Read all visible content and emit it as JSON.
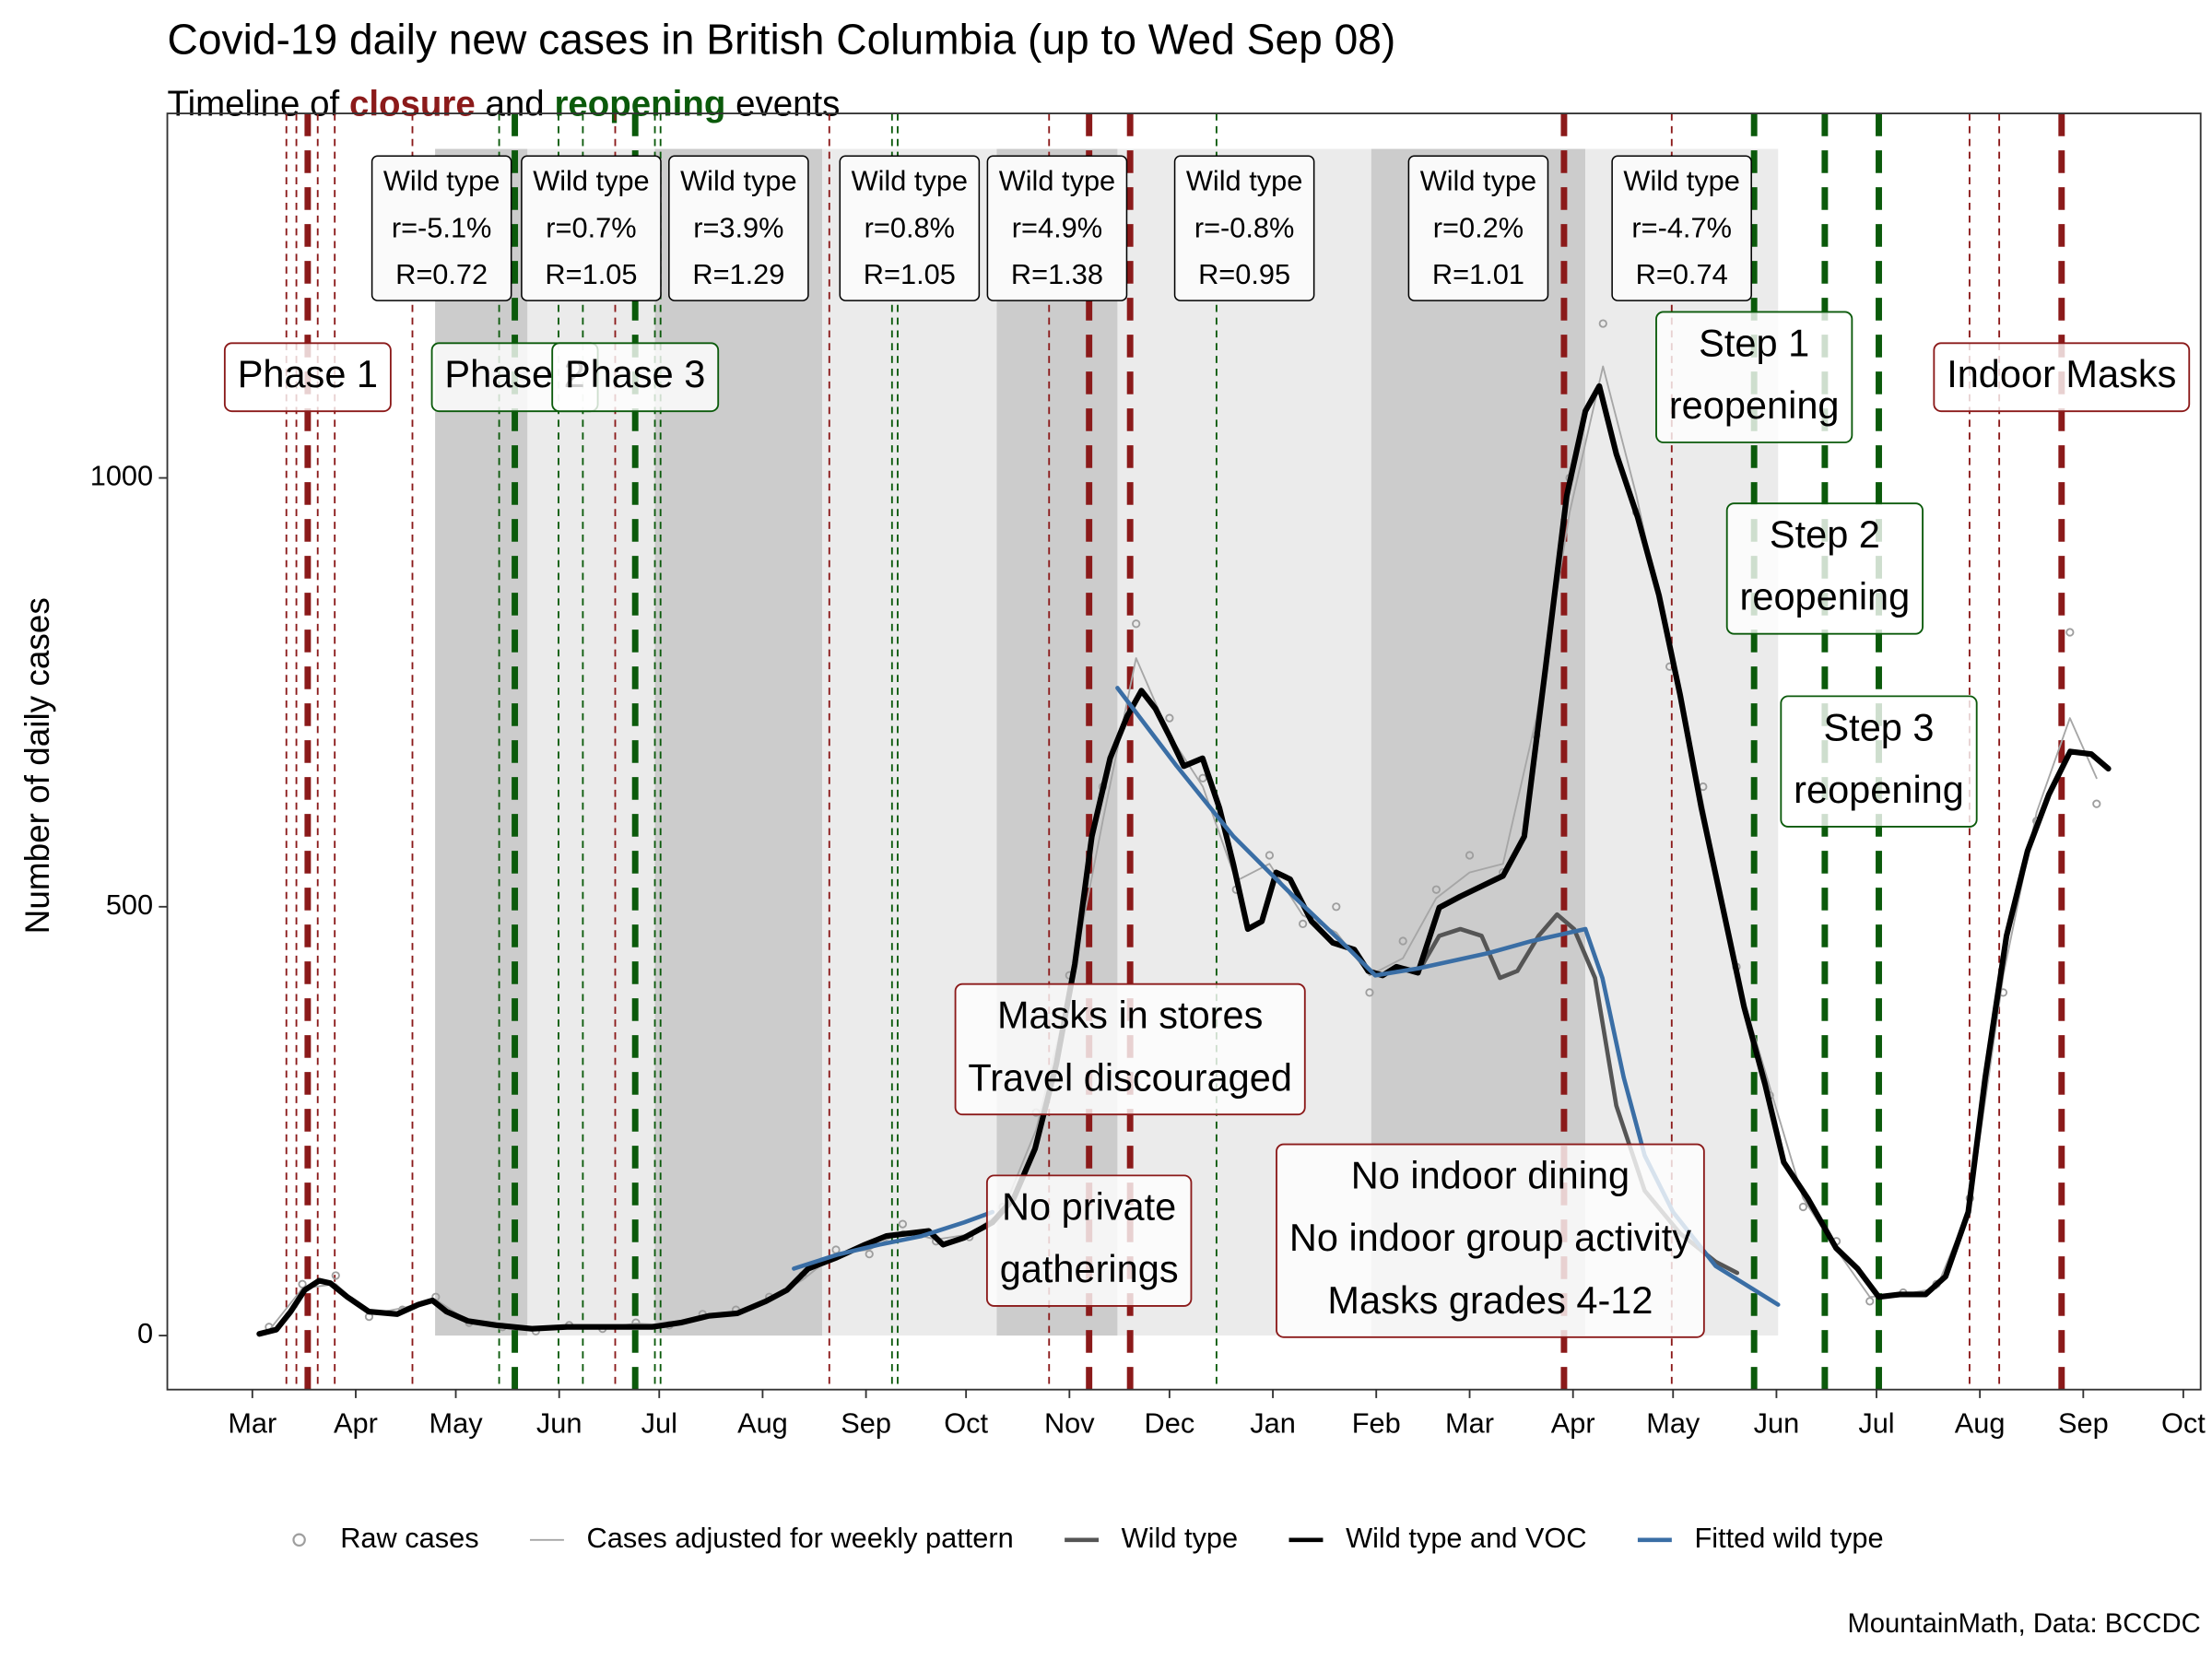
{
  "chart_data": {
    "type": "line",
    "title": "Covid-19 daily new cases in British Columbia (up to Wed Sep 08)",
    "subtitle": [
      {
        "text": "Timeline of"
      },
      {
        "text": "closure",
        "color": "#8b1a1a"
      },
      {
        "text": "and"
      },
      {
        "text": "reopening",
        "color": "#0b5a0b"
      },
      {
        "text": "events"
      }
    ],
    "y_label": "Number of daily cases",
    "caption": "MountainMath, Data: BCCDC",
    "xlim": [
      -25.5,
      584.2
    ],
    "xticks": [
      {
        "value": 0,
        "label": "Mar"
      },
      {
        "value": 31,
        "label": "Apr"
      },
      {
        "value": 61,
        "label": "May"
      },
      {
        "value": 92,
        "label": "Jun"
      },
      {
        "value": 122,
        "label": "Jul"
      },
      {
        "value": 153,
        "label": "Aug"
      },
      {
        "value": 184,
        "label": "Sep"
      },
      {
        "value": 214,
        "label": "Oct"
      },
      {
        "value": 245,
        "label": "Nov"
      },
      {
        "value": 275,
        "label": "Dec"
      },
      {
        "value": 306,
        "label": "Jan"
      },
      {
        "value": 337,
        "label": "Feb"
      },
      {
        "value": 365,
        "label": "Mar"
      },
      {
        "value": 396,
        "label": "Apr"
      },
      {
        "value": 426,
        "label": "May"
      },
      {
        "value": 457,
        "label": "Jun"
      },
      {
        "value": 487,
        "label": "Jul"
      },
      {
        "value": 518,
        "label": "Aug"
      },
      {
        "value": 549,
        "label": "Sep"
      },
      {
        "value": 579,
        "label": "Oct"
      }
    ],
    "ylim": [
      -63,
      1425
    ],
    "yticks": [
      0,
      500,
      1000
    ],
    "grid": false,
    "legend": "bottom",
    "closure_color": "#8b1a1a",
    "reopening_color": "#0b5a0b",
    "period_fills": [
      "#cccccc",
      "#ebebeb"
    ],
    "periods": [
      {
        "start": 54.8,
        "end": 82.5,
        "text": [
          "Wild type",
          "r=-5.1%",
          "R=0.72"
        ]
      },
      {
        "start": 82.5,
        "end": 120.7,
        "text": [
          "Wild type",
          "r=0.7%",
          "R=1.05"
        ]
      },
      {
        "start": 120.7,
        "end": 170.9,
        "text": [
          "Wild type",
          "r=3.9%",
          "R=1.29"
        ]
      },
      {
        "start": 170.9,
        "end": 223.2,
        "text": [
          "Wild type",
          "r=0.8%",
          "R=1.05"
        ]
      },
      {
        "start": 223.2,
        "end": 259.4,
        "text": [
          "Wild type",
          "r=4.9%",
          "R=1.38"
        ]
      },
      {
        "start": 259.4,
        "end": 335.5,
        "text": [
          "Wild type",
          "r=-0.8%",
          "R=0.95"
        ]
      },
      {
        "start": 335.5,
        "end": 399.7,
        "text": [
          "Wild type",
          "r=0.2%",
          "R=1.01"
        ]
      },
      {
        "start": 399.7,
        "end": 457.5,
        "text": [
          "Wild type",
          "r=-4.7%",
          "R=0.74"
        ]
      }
    ],
    "events": [
      {
        "x": 10.2,
        "kind": "closure",
        "major": false
      },
      {
        "x": 13.2,
        "kind": "closure",
        "major": false
      },
      {
        "x": 16.6,
        "kind": "closure",
        "major": true,
        "label": [
          "Phase 1"
        ]
      },
      {
        "x": 19.6,
        "kind": "closure",
        "major": false
      },
      {
        "x": 24.7,
        "kind": "closure",
        "major": false
      },
      {
        "x": 48.0,
        "kind": "closure",
        "major": false
      },
      {
        "x": 74.0,
        "kind": "reopening",
        "major": false
      },
      {
        "x": 78.7,
        "kind": "reopening",
        "major": true,
        "label": [
          "Phase 2"
        ]
      },
      {
        "x": 91.8,
        "kind": "reopening",
        "major": false
      },
      {
        "x": 99.1,
        "kind": "reopening",
        "major": false
      },
      {
        "x": 108.8,
        "kind": "closure",
        "major": false
      },
      {
        "x": 114.8,
        "kind": "reopening",
        "major": true,
        "label": [
          "Phase 3"
        ]
      },
      {
        "x": 120.7,
        "kind": "reopening",
        "major": false
      },
      {
        "x": 122.4,
        "kind": "reopening",
        "major": false
      },
      {
        "x": 173.0,
        "kind": "closure",
        "major": false
      },
      {
        "x": 191.8,
        "kind": "reopening",
        "major": false
      },
      {
        "x": 193.5,
        "kind": "reopening",
        "major": false
      },
      {
        "x": 238.9,
        "kind": "closure",
        "major": false
      },
      {
        "x": 250.9,
        "kind": "closure",
        "major": true,
        "label": [
          "No private",
          "gatherings"
        ]
      },
      {
        "x": 263.2,
        "kind": "closure",
        "major": true,
        "label": [
          "Masks in stores",
          "Travel discouraged"
        ]
      },
      {
        "x": 289.1,
        "kind": "reopening",
        "major": false
      },
      {
        "x": 393.3,
        "kind": "closure",
        "major": true,
        "label": [
          "No indoor dining",
          "No indoor group activity",
          "Masks grades 4-12"
        ]
      },
      {
        "x": 425.6,
        "kind": "closure",
        "major": false
      },
      {
        "x": 450.3,
        "kind": "reopening",
        "major": true,
        "label": [
          "Step 1",
          "reopening"
        ]
      },
      {
        "x": 471.5,
        "kind": "reopening",
        "major": true,
        "label": [
          "Step 2",
          "reopening"
        ]
      },
      {
        "x": 487.7,
        "kind": "reopening",
        "major": true,
        "label": [
          "Step 3",
          "reopening"
        ]
      },
      {
        "x": 514.9,
        "kind": "closure",
        "major": false
      },
      {
        "x": 523.8,
        "kind": "closure",
        "major": false
      },
      {
        "x": 542.5,
        "kind": "closure",
        "major": true,
        "label": [
          "Indoor Masks"
        ]
      }
    ],
    "series": [
      {
        "name": "Raw cases",
        "style": "points",
        "color": "#9e9e9e",
        "width": 1.2,
        "x": [
          5,
          15,
          25,
          35,
          45,
          55,
          65,
          75,
          85,
          95,
          105,
          115,
          125,
          135,
          145,
          155,
          165,
          175,
          185,
          195,
          205,
          215,
          225,
          235,
          245,
          255,
          265,
          275,
          285,
          295,
          305,
          315,
          325,
          335,
          345,
          355,
          365,
          375,
          385,
          395,
          405,
          415,
          425,
          435,
          445,
          455,
          465,
          475,
          485,
          495,
          505,
          515,
          525,
          535,
          545,
          553
        ],
        "values": [
          10,
          60,
          70,
          22,
          30,
          45,
          15,
          10,
          5,
          12,
          8,
          15,
          12,
          25,
          30,
          45,
          70,
          100,
          95,
          130,
          110,
          115,
          150,
          260,
          420,
          640,
          830,
          720,
          650,
          520,
          560,
          480,
          500,
          400,
          460,
          520,
          560,
          540,
          700,
          1000,
          1180,
          960,
          780,
          640,
          430,
          280,
          150,
          110,
          40,
          50,
          60,
          160,
          400,
          600,
          820,
          620
        ]
      },
      {
        "name": "Cases adjusted for weekly pattern",
        "style": "line",
        "color": "#a6a6a6",
        "width": 1.2,
        "x": [
          5,
          15,
          25,
          35,
          45,
          55,
          65,
          75,
          85,
          95,
          105,
          115,
          125,
          135,
          145,
          155,
          165,
          175,
          185,
          195,
          205,
          215,
          225,
          235,
          245,
          255,
          265,
          275,
          285,
          295,
          305,
          315,
          325,
          335,
          345,
          355,
          365,
          375,
          385,
          395,
          405,
          415,
          425,
          435,
          445,
          455,
          465,
          475,
          485,
          495,
          505,
          515,
          525,
          535,
          545,
          553
        ],
        "values": [
          6,
          55,
          60,
          25,
          32,
          42,
          16,
          10,
          7,
          11,
          9,
          14,
          12,
          22,
          28,
          42,
          65,
          96,
          100,
          122,
          112,
          118,
          145,
          240,
          400,
          600,
          790,
          700,
          640,
          530,
          550,
          490,
          470,
          420,
          440,
          510,
          540,
          550,
          720,
          960,
          1130,
          980,
          800,
          620,
          420,
          290,
          160,
          100,
          45,
          48,
          55,
          150,
          420,
          610,
          720,
          650
        ]
      },
      {
        "name": "Wild type",
        "style": "line",
        "color": "#555555",
        "width": 3,
        "x": [
          334.6,
          338.9,
          343.1,
          349.5,
          355.9,
          362.2,
          368.6,
          374.1,
          379.3,
          385.7,
          391.2,
          396.3,
          402.6,
          409.0,
          417.5,
          428.1,
          438.8,
          445.2
        ],
        "values": [
          425,
          420,
          430,
          423,
          466,
          474,
          466,
          417,
          425,
          466,
          491,
          474,
          417,
          268,
          169,
          119,
          86,
          73
        ]
      },
      {
        "name": "Wild type and VOC",
        "style": "line",
        "color": "#000000",
        "width": 4,
        "x": [
          2.1,
          7.2,
          11.5,
          15.7,
          20.0,
          23.4,
          28.5,
          34.9,
          43.4,
          49.7,
          54.0,
          58.2,
          64.6,
          73.1,
          83.8,
          94.4,
          102.9,
          111.4,
          119.9,
          128.4,
          136.9,
          145.4,
          154.0,
          160.3,
          166.7,
          175.2,
          183.7,
          190.1,
          196.4,
          202.8,
          207.1,
          213.4,
          221.9,
          228.3,
          234.7,
          241.1,
          246.6,
          251.7,
          257.2,
          262.3,
          266.6,
          270.8,
          275.1,
          279.3,
          284.9,
          290.0,
          294.2,
          298.5,
          302.7,
          307.0,
          311.2,
          317.6,
          324.0,
          330.4,
          334.6,
          338.9,
          343.1,
          349.5,
          355.9,
          362.2,
          368.6,
          375.0,
          381.4,
          387.8,
          394.1,
          399.7,
          403.9,
          409.0,
          415.4,
          421.8,
          428.1,
          434.5,
          440.9,
          447.3,
          453.6,
          459.2,
          466.4,
          474.9,
          481.3,
          487.7,
          494.0,
          501.7,
          507.7,
          514.5,
          519.6,
          526.0,
          532.3,
          538.7,
          545.1,
          551.4,
          556.5
        ],
        "values": [
          2,
          7,
          28,
          53,
          64,
          61,
          45,
          28,
          25,
          36,
          41,
          28,
          17,
          12,
          8,
          10,
          10,
          10,
          10,
          15,
          23,
          26,
          40,
          53,
          78,
          91,
          106,
          116,
          119,
          122,
          106,
          114,
          132,
          160,
          218,
          317,
          433,
          582,
          673,
          722,
          752,
          731,
          698,
          664,
          673,
          615,
          549,
          474,
          483,
          540,
          532,
          483,
          458,
          450,
          425,
          420,
          430,
          423,
          499,
          512,
          524,
          536,
          582,
          780,
          979,
          1078,
          1107,
          1028,
          954,
          863,
          747,
          615,
          499,
          383,
          293,
          202,
          160,
          102,
          78,
          45,
          48,
          48,
          69,
          144,
          301,
          466,
          565,
          631,
          681,
          678,
          661
        ]
      },
      {
        "name": "Fitted wild type",
        "style": "line",
        "color": "#3a6ea5",
        "width": 3,
        "x": [
          162.4,
          175.2,
          187.9,
          200.7,
          213.4,
          221.9,
          240.0,
          259.4,
          277.2,
          294.2,
          311.2,
          328.2,
          336.7,
          349.5,
          370.7,
          383.5,
          399.7,
          404.8,
          411.2,
          417.5,
          426.0,
          438.8,
          457.5
        ],
        "values": [
          78,
          94,
          106,
          116,
          132,
          144,
          null,
          755,
          664,
          582,
          516,
          453,
          420,
          428,
          446,
          460,
          474,
          417,
          301,
          210,
          144,
          81,
          36
        ]
      }
    ]
  }
}
